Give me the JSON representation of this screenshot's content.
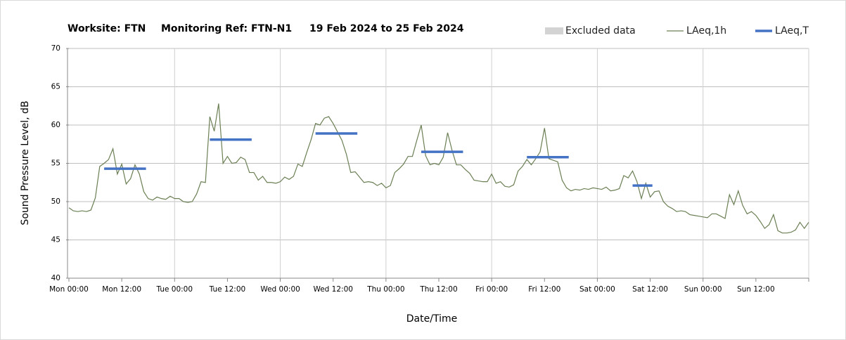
{
  "chart_data": {
    "type": "line",
    "title": [
      "Worksite: FTN",
      "Monitoring Ref: FTN-N1",
      "19 Feb 2024 to 25 Feb 2024"
    ],
    "x_label": "Date/Time",
    "y_label": "Sound Pressure Level, dB",
    "xlim": [
      0,
      168
    ],
    "xticks": [
      {
        "value": 0,
        "label": "Mon 00:00"
      },
      {
        "value": 12,
        "label": "Mon 12:00"
      },
      {
        "value": 24,
        "label": "Tue 00:00"
      },
      {
        "value": 36,
        "label": "Tue 12:00"
      },
      {
        "value": 48,
        "label": "Wed 00:00"
      },
      {
        "value": 60,
        "label": "Wed 12:00"
      },
      {
        "value": 72,
        "label": "Thu 00:00"
      },
      {
        "value": 84,
        "label": "Thu 12:00"
      },
      {
        "value": 96,
        "label": "Fri 00:00"
      },
      {
        "value": 108,
        "label": "Fri 12:00"
      },
      {
        "value": 120,
        "label": "Sat 00:00"
      },
      {
        "value": 132,
        "label": "Sat 12:00"
      },
      {
        "value": 144,
        "label": "Sun 00:00"
      },
      {
        "value": 156,
        "label": "Sun 12:00"
      },
      {
        "value": 168,
        "label": ""
      }
    ],
    "ylim": [
      40,
      70
    ],
    "yticks": [
      40,
      45,
      50,
      55,
      60,
      65,
      70
    ],
    "grid": true,
    "excluded": {
      "name": "Excluded data",
      "color": "#d3d3d3"
    },
    "series": [
      {
        "name": "LAeq,1h",
        "color": "#6b7f54",
        "values": [
          49.2,
          48.8,
          48.7,
          48.8,
          48.7,
          48.9,
          50.5,
          54.6,
          55.0,
          55.5,
          56.9,
          53.6,
          54.9,
          52.3,
          53.0,
          54.8,
          53.6,
          51.3,
          50.4,
          50.2,
          50.6,
          50.4,
          50.3,
          50.7,
          50.4,
          50.4,
          50.0,
          49.9,
          50.0,
          51.0,
          52.6,
          52.5,
          61.1,
          59.2,
          62.8,
          55.0,
          55.9,
          55.0,
          55.1,
          55.8,
          55.5,
          53.8,
          53.8,
          52.8,
          53.3,
          52.5,
          52.5,
          52.4,
          52.6,
          53.2,
          52.9,
          53.3,
          54.9,
          54.6,
          56.4,
          58.1,
          60.2,
          60.0,
          60.9,
          61.1,
          60.2,
          59.1,
          58.0,
          56.2,
          53.8,
          53.9,
          53.2,
          52.5,
          52.6,
          52.5,
          52.1,
          52.4,
          51.8,
          52.1,
          53.8,
          54.3,
          54.9,
          55.9,
          55.9,
          58.0,
          60.0,
          56.0,
          54.8,
          55.0,
          54.8,
          55.8,
          59.0,
          56.7,
          54.8,
          54.8,
          54.2,
          53.7,
          52.8,
          52.7,
          52.6,
          52.6,
          53.6,
          52.4,
          52.6,
          52.0,
          51.9,
          52.2,
          54.0,
          54.6,
          55.5,
          54.8,
          55.6,
          56.5,
          59.6,
          55.6,
          55.4,
          55.2,
          52.8,
          51.8,
          51.4,
          51.6,
          51.5,
          51.7,
          51.6,
          51.8,
          51.7,
          51.6,
          51.9,
          51.4,
          51.5,
          51.7,
          53.4,
          53.1,
          54.0,
          52.6,
          50.4,
          52.4,
          50.6,
          51.3,
          51.4,
          50.0,
          49.4,
          49.1,
          48.7,
          48.8,
          48.7,
          48.3,
          48.2,
          48.1,
          48.0,
          47.9,
          48.4,
          48.4,
          48.1,
          47.8,
          50.9,
          49.6,
          51.4,
          49.5,
          48.4,
          48.7,
          48.2,
          47.4,
          46.5,
          47.0,
          48.3,
          46.2,
          45.9,
          45.9,
          46.0,
          46.3,
          47.3,
          46.5,
          47.3
        ]
      },
      {
        "name": "LAeq,T",
        "color": "#4472c4",
        "segments": [
          {
            "start": 8,
            "end": 17.5,
            "value": 54.3
          },
          {
            "start": 32,
            "end": 41.5,
            "value": 58.1
          },
          {
            "start": 56,
            "end": 65.5,
            "value": 58.9
          },
          {
            "start": 80,
            "end": 89.5,
            "value": 56.5
          },
          {
            "start": 104,
            "end": 113.5,
            "value": 55.8
          },
          {
            "start": 128,
            "end": 132.5,
            "value": 52.1
          }
        ]
      }
    ]
  }
}
